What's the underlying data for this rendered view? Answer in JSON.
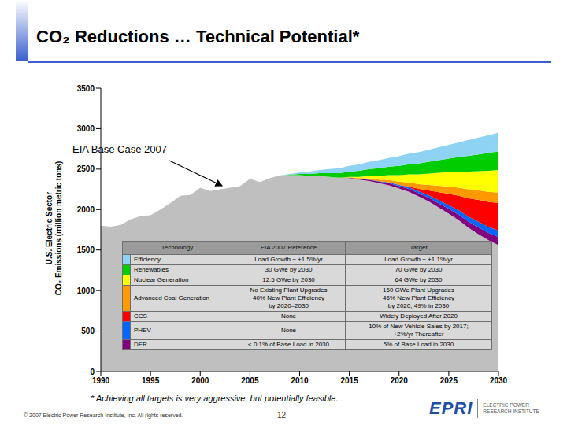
{
  "title": "CO₂ Reductions … Technical Potential*",
  "chart_data": {
    "type": "area",
    "stacked": true,
    "grid": false,
    "annotation": "EIA Base Case 2007",
    "y_label": [
      "U.S. Electric Sector",
      "CO₂ Emissions (million metric tons)"
    ],
    "x": [
      1990,
      1991,
      1992,
      1993,
      1994,
      1995,
      1996,
      1997,
      1998,
      1999,
      2000,
      2001,
      2002,
      2003,
      2004,
      2005,
      2006,
      2007,
      2008,
      2009,
      2010,
      2011,
      2012,
      2013,
      2014,
      2015,
      2016,
      2017,
      2018,
      2019,
      2020,
      2021,
      2022,
      2023,
      2024,
      2025,
      2026,
      2027,
      2028,
      2029,
      2030
    ],
    "xlim": [
      1990,
      2030
    ],
    "xticks": [
      1990,
      1995,
      2000,
      2005,
      2010,
      2015,
      2020,
      2025,
      2030
    ],
    "ylim": [
      0,
      3500
    ],
    "yticks": [
      0,
      500,
      1000,
      1500,
      2000,
      2500,
      3000,
      3500
    ],
    "series": [
      {
        "color": "#bfbfbf",
        "values": [
          1800,
          1790,
          1810,
          1880,
          1920,
          1930,
          2000,
          2080,
          2170,
          2180,
          2270,
          2230,
          2250,
          2270,
          2290,
          2380,
          2340,
          2390,
          2420,
          2425,
          2425,
          2415,
          2415,
          2405,
          2393,
          2390,
          2370,
          2353,
          2325,
          2300,
          2260,
          2220,
          2160,
          2100,
          2025,
          1950,
          1870,
          1775,
          1695,
          1620,
          1560
        ]
      },
      {
        "name": "Efficiency",
        "color": "#8fd3f4",
        "values": [
          0,
          0,
          0,
          0,
          0,
          0,
          0,
          0,
          0,
          0,
          0,
          0,
          0,
          0,
          0,
          0,
          0,
          0,
          0,
          10,
          20,
          30,
          40,
          50,
          60,
          70,
          80,
          90,
          100,
          110,
          120,
          130,
          140,
          150,
          160,
          170,
          180,
          195,
          210,
          220,
          230
        ]
      },
      {
        "name": "Renewables",
        "color": "#00cc00",
        "values": [
          0,
          0,
          0,
          0,
          0,
          0,
          0,
          0,
          0,
          0,
          0,
          0,
          0,
          0,
          0,
          0,
          0,
          0,
          0,
          5,
          15,
          25,
          35,
          45,
          55,
          65,
          75,
          85,
          95,
          105,
          115,
          125,
          135,
          145,
          155,
          165,
          180,
          195,
          205,
          220,
          230
        ]
      },
      {
        "name": "Nuclear Generation",
        "color": "#ffff00",
        "values": [
          0,
          0,
          0,
          0,
          0,
          0,
          0,
          0,
          0,
          0,
          0,
          0,
          0,
          0,
          0,
          0,
          0,
          0,
          0,
          0,
          0,
          0,
          0,
          0,
          0,
          5,
          15,
          30,
          45,
          60,
          80,
          100,
          120,
          140,
          160,
          180,
          200,
          220,
          240,
          260,
          280
        ]
      },
      {
        "name": "Advanced Coal Generation",
        "color": "#ff9900",
        "values": [
          0,
          0,
          0,
          0,
          0,
          0,
          0,
          0,
          0,
          0,
          0,
          0,
          0,
          0,
          0,
          0,
          0,
          0,
          0,
          0,
          0,
          0,
          0,
          0,
          0,
          5,
          10,
          15,
          20,
          30,
          40,
          50,
          60,
          70,
          80,
          90,
          100,
          110,
          115,
          125,
          130
        ]
      },
      {
        "name": "CCS",
        "color": "#ff0000",
        "values": [
          0,
          0,
          0,
          0,
          0,
          0,
          0,
          0,
          0,
          0,
          0,
          0,
          0,
          0,
          0,
          0,
          0,
          0,
          0,
          0,
          0,
          0,
          0,
          0,
          0,
          0,
          0,
          0,
          0,
          0,
          0,
          10,
          30,
          60,
          100,
          140,
          180,
          230,
          270,
          310,
          340
        ]
      },
      {
        "name": "PHEV",
        "color": "#0066ff",
        "values": [
          0,
          0,
          0,
          0,
          0,
          0,
          0,
          0,
          0,
          0,
          0,
          0,
          0,
          0,
          0,
          0,
          0,
          0,
          0,
          0,
          0,
          0,
          0,
          0,
          0,
          0,
          0,
          2,
          5,
          10,
          15,
          20,
          25,
          30,
          40,
          45,
          55,
          60,
          70,
          75,
          80
        ]
      },
      {
        "name": "DER",
        "color": "#800080",
        "values": [
          0,
          0,
          0,
          0,
          0,
          0,
          0,
          0,
          0,
          0,
          0,
          0,
          0,
          0,
          0,
          0,
          0,
          0,
          0,
          0,
          0,
          0,
          0,
          0,
          2,
          5,
          10,
          15,
          20,
          25,
          30,
          35,
          40,
          45,
          50,
          60,
          65,
          75,
          85,
          90,
          100
        ]
      }
    ]
  },
  "table": {
    "columns": [
      "Technology",
      "EIA 2007 Reference",
      "Target"
    ],
    "rows": [
      [
        "Efficiency",
        "Load Growth ~ +1.5%/yr",
        "Load Growth ~ +1.1%/yr"
      ],
      [
        "Renewables",
        "30 GWe by 2030",
        "70 GWe by 2030"
      ],
      [
        "Nuclear Generation",
        "12.5 GWe by 2030",
        "64 GWe by 2030"
      ],
      [
        "Advanced Coal Generation",
        "No Existing Plant Upgrades\n40% New Plant Efficiency\nby 2020–2030",
        "150 GWe Plant Upgrades\n46% New Plant Efficiency\nby 2020; 49% in 2030"
      ],
      [
        "CCS",
        "None",
        "Widely Deployed After 2020"
      ],
      [
        "PHEV",
        "None",
        "10% of New Vehicle Sales by 2017;\n+2%/yr Thereafter"
      ],
      [
        "DER",
        "< 0.1% of Base Load in 2030",
        "5% of Base Load in 2030"
      ]
    ]
  },
  "footnote": "* Achieving all targets is very aggressive, but potentially feasible.",
  "copyright": "© 2007 Electric Power Research Institute, Inc. All rights reserved.",
  "page": "12",
  "logo": {
    "name": "EPRI",
    "subtitle": [
      "ELECTRIC POWER",
      "RESEARCH INSTITUTE"
    ]
  }
}
